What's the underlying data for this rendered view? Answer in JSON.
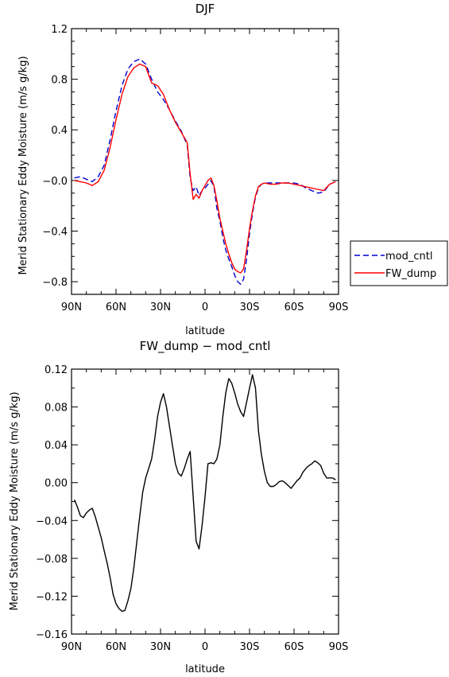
{
  "chart_data": [
    {
      "type": "line",
      "title": "DJF",
      "xlabel": "latitude",
      "ylabel": "Merid Stationary Eddy Moisture (m/s g/kg)",
      "xlim": [
        -90,
        90
      ],
      "ylim": [
        -0.9,
        1.2
      ],
      "x_ticks": [
        -90,
        -60,
        -30,
        0,
        30,
        60,
        90
      ],
      "x_tick_labels": [
        "90N",
        "60N",
        "30N",
        "0",
        "30S",
        "60S",
        "90S"
      ],
      "y_ticks": [
        1.2,
        0.8,
        0.4,
        0.0,
        -0.4,
        -0.8
      ],
      "y_tick_labels": [
        "1.2",
        "0.8",
        "0.4",
        "−0.0",
        "−0.4",
        "−0.8"
      ],
      "legend": {
        "placement": "right",
        "entries": [
          "mod_cntl",
          "FW_dump"
        ]
      },
      "series": [
        {
          "name": "mod_cntl",
          "color": "#0000cc",
          "dash": "dashed",
          "x": [
            -88,
            -84,
            -80,
            -76,
            -72,
            -68,
            -64,
            -60,
            -56,
            -52,
            -48,
            -44,
            -40,
            -36,
            -32,
            -28,
            -24,
            -20,
            -16,
            -12,
            -10,
            -8,
            -6,
            -4,
            -2,
            0,
            2,
            4,
            6,
            8,
            10,
            12,
            14,
            16,
            18,
            20,
            22,
            24,
            26,
            28,
            30,
            32,
            34,
            36,
            38,
            40,
            44,
            48,
            52,
            56,
            60,
            64,
            68,
            72,
            76,
            80,
            84,
            88
          ],
          "y": [
            0.02,
            0.03,
            0.01,
            -0.01,
            0.03,
            0.12,
            0.32,
            0.55,
            0.75,
            0.88,
            0.94,
            0.96,
            0.92,
            0.8,
            0.7,
            0.64,
            0.56,
            0.47,
            0.39,
            0.28,
            0.02,
            -0.08,
            -0.05,
            -0.12,
            -0.08,
            -0.06,
            -0.03,
            0.0,
            -0.05,
            -0.22,
            -0.32,
            -0.45,
            -0.55,
            -0.62,
            -0.68,
            -0.75,
            -0.8,
            -0.82,
            -0.78,
            -0.62,
            -0.42,
            -0.26,
            -0.13,
            -0.06,
            -0.03,
            -0.02,
            -0.02,
            -0.02,
            -0.02,
            -0.02,
            -0.02,
            -0.03,
            -0.06,
            -0.08,
            -0.1,
            -0.09,
            -0.03,
            -0.01
          ]
        },
        {
          "name": "FW_dump",
          "color": "#ff0000",
          "dash": "solid",
          "x": [
            -88,
            -84,
            -80,
            -76,
            -72,
            -68,
            -64,
            -60,
            -56,
            -52,
            -48,
            -44,
            -40,
            -36,
            -32,
            -28,
            -24,
            -20,
            -16,
            -12,
            -10,
            -8,
            -6,
            -4,
            -2,
            0,
            2,
            4,
            6,
            8,
            10,
            12,
            14,
            16,
            18,
            20,
            22,
            24,
            26,
            28,
            30,
            32,
            34,
            36,
            38,
            40,
            44,
            48,
            52,
            56,
            60,
            64,
            68,
            72,
            76,
            80,
            84,
            88
          ],
          "y": [
            0.0,
            -0.01,
            -0.02,
            -0.04,
            -0.01,
            0.08,
            0.26,
            0.48,
            0.68,
            0.82,
            0.89,
            0.92,
            0.9,
            0.77,
            0.75,
            0.68,
            0.56,
            0.46,
            0.38,
            0.3,
            0.05,
            -0.15,
            -0.11,
            -0.14,
            -0.08,
            -0.04,
            0.0,
            0.02,
            -0.04,
            -0.16,
            -0.3,
            -0.4,
            -0.5,
            -0.58,
            -0.65,
            -0.7,
            -0.72,
            -0.73,
            -0.7,
            -0.55,
            -0.38,
            -0.24,
            -0.12,
            -0.05,
            -0.03,
            -0.02,
            -0.03,
            -0.03,
            -0.02,
            -0.02,
            -0.03,
            -0.04,
            -0.05,
            -0.06,
            -0.07,
            -0.08,
            -0.03,
            -0.01
          ]
        }
      ]
    },
    {
      "type": "line",
      "title": "FW_dump − mod_cntl",
      "xlabel": "latitude",
      "ylabel": "Merid Stationary Eddy Moisture (m/s g/kg)",
      "xlim": [
        -90,
        90
      ],
      "ylim": [
        -0.16,
        0.12
      ],
      "x_ticks": [
        -90,
        -60,
        -30,
        0,
        30,
        60,
        90
      ],
      "x_tick_labels": [
        "90N",
        "60N",
        "30N",
        "0",
        "30S",
        "60S",
        "90S"
      ],
      "y_ticks": [
        0.12,
        0.08,
        0.04,
        0.0,
        -0.04,
        -0.08,
        -0.12,
        -0.16
      ],
      "y_tick_labels": [
        "0.12",
        "0.08",
        "0.04",
        "0.00",
        "−0.04",
        "−0.08",
        "−0.12",
        "−0.16"
      ],
      "series": [
        {
          "color": "#000000",
          "dash": "solid",
          "x": [
            -88,
            -86,
            -84,
            -82,
            -80,
            -78,
            -76,
            -74,
            -72,
            -70,
            -68,
            -66,
            -64,
            -62,
            -60,
            -58,
            -56,
            -54,
            -52,
            -50,
            -48,
            -46,
            -44,
            -42,
            -40,
            -38,
            -36,
            -34,
            -32,
            -30,
            -28,
            -26,
            -24,
            -22,
            -20,
            -18,
            -16,
            -14,
            -12,
            -10,
            -8,
            -6,
            -4,
            -2,
            0,
            2,
            4,
            6,
            8,
            10,
            12,
            14,
            16,
            18,
            20,
            22,
            24,
            26,
            28,
            30,
            32,
            34,
            36,
            38,
            40,
            42,
            44,
            46,
            48,
            50,
            52,
            54,
            56,
            58,
            60,
            62,
            64,
            66,
            68,
            70,
            72,
            74,
            76,
            78,
            80,
            82,
            84,
            86,
            88
          ],
          "y": [
            -0.018,
            -0.026,
            -0.035,
            -0.037,
            -0.032,
            -0.029,
            -0.027,
            -0.036,
            -0.047,
            -0.058,
            -0.072,
            -0.085,
            -0.1,
            -0.118,
            -0.128,
            -0.133,
            -0.136,
            -0.135,
            -0.125,
            -0.112,
            -0.09,
            -0.063,
            -0.035,
            -0.01,
            0.005,
            0.015,
            0.025,
            0.045,
            0.07,
            0.085,
            0.094,
            0.08,
            0.06,
            0.04,
            0.02,
            0.01,
            0.007,
            0.015,
            0.025,
            0.033,
            -0.015,
            -0.062,
            -0.07,
            -0.045,
            -0.015,
            0.02,
            0.021,
            0.02,
            0.025,
            0.04,
            0.07,
            0.095,
            0.11,
            0.105,
            0.095,
            0.083,
            0.075,
            0.07,
            0.085,
            0.1,
            0.114,
            0.1,
            0.055,
            0.03,
            0.012,
            0.0,
            -0.004,
            -0.004,
            -0.002,
            0.001,
            0.002,
            0.0,
            -0.003,
            -0.006,
            -0.002,
            0.002,
            0.005,
            0.011,
            0.015,
            0.018,
            0.02,
            0.023,
            0.021,
            0.018,
            0.01,
            0.005,
            0.005,
            0.005,
            0.003
          ]
        }
      ]
    }
  ]
}
